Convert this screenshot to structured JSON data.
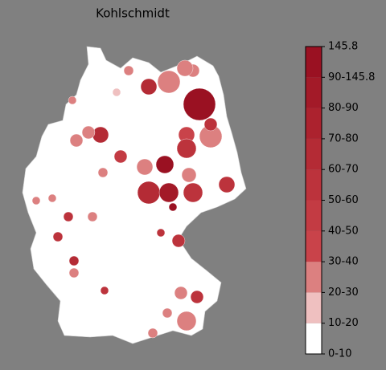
{
  "chart_data": {
    "type": "choropleth",
    "title": "Kohlschmidt",
    "regions": [
      100,
      60,
      25,
      20,
      25,
      20,
      25,
      30,
      55,
      55,
      95,
      20,
      45,
      65,
      20,
      20,
      60,
      85,
      55,
      55,
      20,
      95,
      50,
      50,
      60,
      25,
      50,
      55,
      55,
      20,
      20,
      20,
      25,
      50,
      20,
      20,
      25,
      25,
      25,
      15
    ],
    "colorbar": {
      "ticks": [
        {
          "value": 0,
          "label": "0-10"
        },
        {
          "value": 10,
          "label": "10-20"
        },
        {
          "value": 20,
          "label": "20-30"
        },
        {
          "value": 30,
          "label": "30-40"
        },
        {
          "value": 40,
          "label": "40-50"
        },
        {
          "value": 50,
          "label": "50-60"
        },
        {
          "value": 60,
          "label": "60-70"
        },
        {
          "value": 70,
          "label": "70-80"
        },
        {
          "value": 80,
          "label": "80-90"
        },
        {
          "value": 90,
          "label": "90-145.8"
        },
        145.8
      ],
      "colors": [
        "#ffffff",
        "#efc0c0",
        "#dc8080",
        "#c9434a",
        "#c33b43",
        "#bc333c",
        "#b42b35",
        "#ac222e",
        "#a31a28",
        "#9a1122"
      ]
    }
  }
}
